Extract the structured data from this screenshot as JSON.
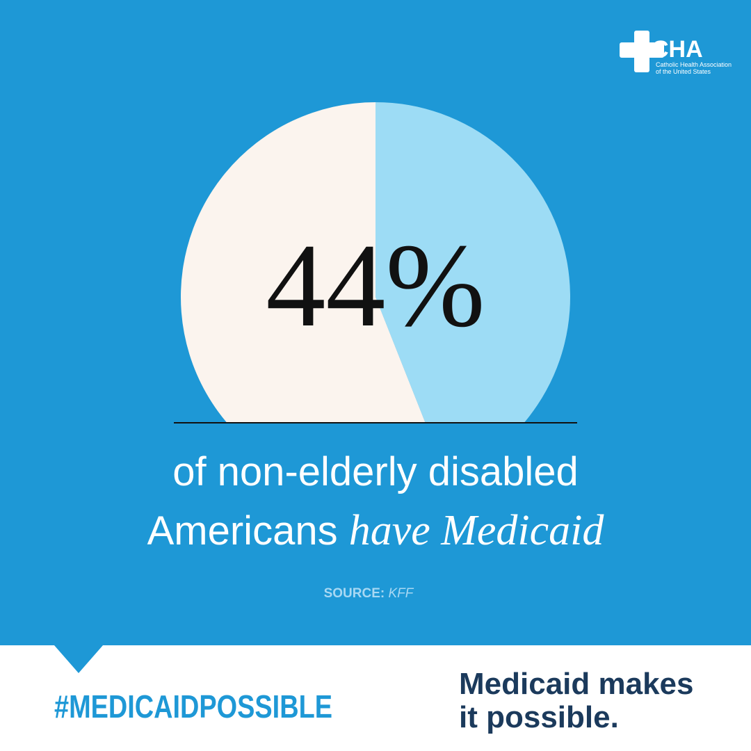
{
  "logo": {
    "name": "CHA",
    "line1": "Catholic Health Association",
    "line2": "of the United States"
  },
  "chart_data": {
    "type": "pie",
    "values": [
      44,
      56
    ],
    "value_labels": [
      "44%",
      null
    ],
    "colors": [
      "#9ddcf5",
      "#fbf4ee"
    ]
  },
  "caption": {
    "line1": "of non-elderly disabled",
    "line2_plain": "Americans",
    "line2_italic": "have Medicaid"
  },
  "source": {
    "label": "SOURCE:",
    "name": "KFF"
  },
  "footer": {
    "hashtag": "#MEDICAIDPOSSIBLE",
    "tagline_1": "Medicaid makes",
    "tagline_2": "it possible."
  }
}
